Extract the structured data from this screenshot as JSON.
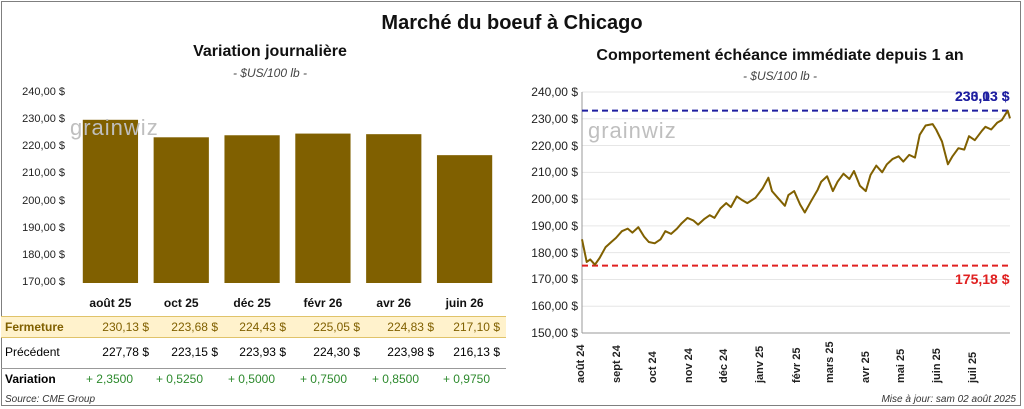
{
  "title": "Marché du boeuf à Chicago",
  "left_chart": {
    "title": "Variation journalière",
    "unit": "- $US/100 lb -",
    "watermark": "grainwiz",
    "yticks": [
      "240,00 $",
      "230,00 $",
      "220,00 $",
      "210,00 $",
      "200,00 $",
      "190,00 $",
      "180,00 $",
      "170,00 $"
    ],
    "bar_color": "#806000"
  },
  "table": {
    "row_labels": {
      "close": "Fermeture",
      "previous": "Précédent",
      "change": "Variation"
    },
    "close": [
      "230,13  $",
      "223,68  $",
      "224,43  $",
      "225,05  $",
      "224,83  $",
      "217,10  $"
    ],
    "previous": [
      "227,78  $",
      "223,15  $",
      "223,93  $",
      "224,30  $",
      "223,98  $",
      "216,13  $"
    ],
    "change": [
      "+ 2,3500",
      "+ 0,5250",
      "+ 0,5000",
      "+ 0,7500",
      "+ 0,8500",
      "+ 0,9750"
    ]
  },
  "right_chart": {
    "title": "Comportement échéance immédiate depuis 1 an",
    "unit": "- $US/100 lb -",
    "watermark": "grainwiz",
    "yticks": [
      "240,00 $",
      "230,00 $",
      "220,00 $",
      "210,00 $",
      "200,00 $",
      "190,00 $",
      "180,00 $",
      "170,00 $",
      "160,00 $",
      "150,00 $"
    ],
    "xticks": [
      "août 24",
      "sept 24",
      "oct 24",
      "nov 24",
      "déc 24",
      "janv 25",
      "févr 25",
      "mars 25",
      "avr 25",
      "mai 25",
      "juin 25",
      "juil 25"
    ],
    "max_label": "233,03 $",
    "max_label_overlap": "230,13 $",
    "min_label": "175,18 $",
    "line_color": "#806000",
    "max_color": "#1f1fa0",
    "min_color": "#e02020"
  },
  "footer": {
    "source": "Source: CME Group",
    "updated": "Mise à jour: sam 02 août 2025"
  },
  "chart_data": [
    {
      "type": "bar",
      "title": "Variation journalière",
      "categories": [
        "août 25",
        "oct 25",
        "déc 25",
        "févr 26",
        "avr 26",
        "juin 26"
      ],
      "values": [
        230.13,
        223.68,
        224.43,
        225.05,
        224.83,
        217.1
      ],
      "ylabel": "$US/100 lb",
      "ylim": [
        170,
        240
      ],
      "grid": false
    },
    {
      "type": "line",
      "title": "Comportement échéance immédiate depuis 1 an",
      "ylabel": "$US/100 lb",
      "ylim": [
        150,
        240
      ],
      "x": [
        "2024-08-01",
        "2024-08-05",
        "2024-08-08",
        "2024-08-12",
        "2024-08-16",
        "2024-08-21",
        "2024-08-26",
        "2024-08-30",
        "2024-09-04",
        "2024-09-09",
        "2024-09-13",
        "2024-09-18",
        "2024-09-23",
        "2024-09-27",
        "2024-10-02",
        "2024-10-07",
        "2024-10-11",
        "2024-10-16",
        "2024-10-21",
        "2024-10-25",
        "2024-10-30",
        "2024-11-04",
        "2024-11-08",
        "2024-11-13",
        "2024-11-18",
        "2024-11-22",
        "2024-11-27",
        "2024-12-02",
        "2024-12-06",
        "2024-12-11",
        "2024-12-16",
        "2024-12-20",
        "2024-12-27",
        "2025-01-02",
        "2025-01-07",
        "2025-01-10",
        "2025-01-15",
        "2025-01-21",
        "2025-01-24",
        "2025-01-29",
        "2025-02-03",
        "2025-02-07",
        "2025-02-12",
        "2025-02-18",
        "2025-02-21",
        "2025-02-26",
        "2025-03-03",
        "2025-03-07",
        "2025-03-12",
        "2025-03-17",
        "2025-03-21",
        "2025-03-26",
        "2025-03-31",
        "2025-04-04",
        "2025-04-09",
        "2025-04-14",
        "2025-04-18",
        "2025-04-23",
        "2025-04-28",
        "2025-05-02",
        "2025-05-07",
        "2025-05-12",
        "2025-05-16",
        "2025-05-21",
        "2025-05-27",
        "2025-05-30",
        "2025-06-04",
        "2025-06-09",
        "2025-06-13",
        "2025-06-18",
        "2025-06-23",
        "2025-06-27",
        "2025-07-02",
        "2025-07-08",
        "2025-07-11",
        "2025-07-16",
        "2025-07-21",
        "2025-07-25",
        "2025-07-30",
        "2025-08-01"
      ],
      "series": [
        {
          "values": [
            185.0,
            176.5,
            177.5,
            175.5,
            178.0,
            182.0,
            184.0,
            185.5,
            188.0,
            189.0,
            187.5,
            189.5,
            186.0,
            184.0,
            183.5,
            185.0,
            188.0,
            187.0,
            189.0,
            191.0,
            193.0,
            192.0,
            190.5,
            192.5,
            194.0,
            193.0,
            196.5,
            198.5,
            197.0,
            201.0,
            199.5,
            198.5,
            200.5,
            204.0,
            208.0,
            203.0,
            200.5,
            197.5,
            201.5,
            203.0,
            198.0,
            195.0,
            199.0,
            203.5,
            206.5,
            208.5,
            203.0,
            206.5,
            209.5,
            207.5,
            210.5,
            205.0,
            203.0,
            209.0,
            212.5,
            210.0,
            213.0,
            215.0,
            216.0,
            214.0,
            216.5,
            215.5,
            224.0,
            227.5,
            228.0,
            226.0,
            221.5,
            213.0,
            216.0,
            219.0,
            218.5,
            223.5,
            222.0,
            225.5,
            227.0,
            226.0,
            228.5,
            229.5,
            233.03,
            230.13
          ]
        }
      ],
      "annotations": [
        {
          "label": "233,03 $",
          "value": 233.03,
          "color": "#1f1fa0"
        },
        {
          "label": "175,18 $",
          "value": 175.18,
          "color": "#e02020"
        }
      ]
    }
  ]
}
